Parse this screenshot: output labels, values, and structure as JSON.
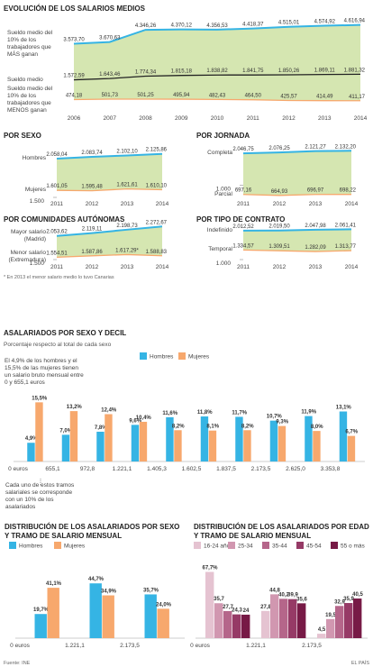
{
  "chart_data": [
    {
      "type": "line",
      "title": "EVOLUCIÓN DE LOS SALARIOS MEDIOS",
      "categories": [
        "2006",
        "2007",
        "2008",
        "2009",
        "2010",
        "2011",
        "2012",
        "2013",
        "2014"
      ],
      "ylim": [
        0,
        4800
      ],
      "fill": "#d5e6b1",
      "series": [
        {
          "name": "Sueldo medio del 10% de los trabajadores que MÁS ganan",
          "color": "#35b4e4",
          "values": [
            3573.7,
            3670.63,
            4346.26,
            4370.12,
            4356.53,
            4418.37,
            4515.01,
            4574.92,
            4616.94
          ],
          "value_labels": [
            "3.573,70",
            "3.670,63",
            "4.346,26",
            "4.370,12",
            "4.356,53",
            "4.418,37",
            "4.515,01",
            "4.574,92",
            "4.616,94"
          ]
        },
        {
          "name": "Sueldo medio",
          "color": "#222222",
          "values": [
            1572.59,
            1643.46,
            1774.34,
            1815.18,
            1838.82,
            1841.75,
            1850.26,
            1869.11,
            1881.32
          ],
          "value_labels": [
            "1.572,59",
            "1.643,46",
            "1.774,34",
            "1.815,18",
            "1.838,82",
            "1.841,75",
            "1.850,26",
            "1.869,11",
            "1.881,32"
          ]
        },
        {
          "name": "Sueldo medio del 10% de los trabajadores que MENOS ganan",
          "color": "#f7a86d",
          "values": [
            474.18,
            501.73,
            501.25,
            495.94,
            482.43,
            464.5,
            425.57,
            414.49,
            411.17
          ],
          "value_labels": [
            "474,18",
            "501,73",
            "501,25",
            "495,94",
            "482,43",
            "464,50",
            "425,57",
            "414,49",
            "411,17"
          ]
        }
      ]
    },
    {
      "type": "line",
      "title": "POR SEXO",
      "categories": [
        "2011",
        "2012",
        "2013",
        "2014"
      ],
      "ylim": [
        1500,
        2200
      ],
      "yticks": [
        {
          "value": 1500,
          "label": "1.500"
        }
      ],
      "fill": "#d5e6b1",
      "series": [
        {
          "name": "Hombres",
          "color": "#35b4e4",
          "values": [
            2058.04,
            2083.74,
            2102.1,
            2125.86
          ],
          "value_labels": [
            "2.058,04",
            "2.083,74",
            "2.102,10",
            "2.125,86"
          ]
        },
        {
          "name": "Mujeres",
          "color": "#f7a86d",
          "values": [
            1601.05,
            1595.48,
            1621.61,
            1610.1
          ],
          "value_labels": [
            "1.601,05",
            "1.595,48",
            "1.621,61",
            "1.610,10"
          ]
        }
      ]
    },
    {
      "type": "line",
      "title": "POR JORNADA",
      "categories": [
        "2011",
        "2012",
        "2013",
        "2014"
      ],
      "ylim": [
        600,
        2200
      ],
      "yticks": [
        {
          "value": 1000,
          "label": "1.000"
        }
      ],
      "fill": "#d5e6b1",
      "series": [
        {
          "name": "Completa",
          "color": "#35b4e4",
          "values": [
            2046.75,
            2076.25,
            2121.27,
            2132.2
          ],
          "value_labels": [
            "2.046,75",
            "2.076,25",
            "2.121,27",
            "2.132,20"
          ]
        },
        {
          "name": "Parcial",
          "color": "#f7a86d",
          "values": [
            697.16,
            664.93,
            696.97,
            698.22
          ],
          "value_labels": [
            "697,16",
            "664,93",
            "696,97",
            "698,22"
          ]
        }
      ]
    },
    {
      "type": "line",
      "title": "POR COMUNIDADES AUTÓNOMAS",
      "categories": [
        "2011",
        "2012",
        "2013",
        "2014"
      ],
      "ylim": [
        1500,
        2300
      ],
      "yticks": [
        {
          "value": 1500,
          "label": "1.500"
        }
      ],
      "fill": "#d5e6b1",
      "note": "* En 2013 el menor salario medio lo tuvo Canarias",
      "series": [
        {
          "name": "Mayor salario (Madrid)",
          "color": "#35b4e4",
          "values": [
            2053.62,
            2119.11,
            2198.73,
            2272.67
          ],
          "value_labels": [
            "2.053,62",
            "2.119,11",
            "2.198,73",
            "2.272,67"
          ]
        },
        {
          "name": "Menor salario (Extremadura)",
          "color": "#f7a86d",
          "values": [
            1554.51,
            1587.86,
            1617.29,
            1588.83
          ],
          "value_labels": [
            "1.554,51",
            "1.587,86",
            "1.617,29*",
            "1.588,83"
          ]
        }
      ]
    },
    {
      "type": "line",
      "title": "POR TIPO DE CONTRATO",
      "categories": [
        "2011",
        "2012",
        "2013",
        "2014"
      ],
      "ylim": [
        1000,
        2200
      ],
      "yticks": [
        {
          "value": 1000,
          "label": "1.000"
        }
      ],
      "fill": "#d5e6b1",
      "series": [
        {
          "name": "Indefinido",
          "color": "#35b4e4",
          "values": [
            2012.52,
            2019.5,
            2047.98,
            2061.41
          ],
          "value_labels": [
            "2.012,52",
            "2.019,50",
            "2.047,98",
            "2.061,41"
          ]
        },
        {
          "name": "Temporal",
          "color": "#f7a86d",
          "values": [
            1334.57,
            1309.51,
            1282.09,
            1313.77
          ],
          "value_labels": [
            "1.334,57",
            "1.309,51",
            "1.282,09",
            "1.313,77"
          ]
        }
      ]
    },
    {
      "type": "bar",
      "title": "ASALARIADOS POR SEXO Y DECIL",
      "subtitle": "Porcentaje respecto al total de cada sexo",
      "annotations": [
        "El 4,9% de los hombres y el 15,5% de las mujeres tienen un salario bruto mensual entre 0 y 655,1 euros",
        "Cada uno de estos tramos salariales se corresponde con un 10% de los asalariados"
      ],
      "categories": [
        "0 euros",
        "655,1",
        "972,8",
        "1.221,1",
        "1.405,3",
        "1.602,5",
        "1.837,5",
        "2.173,5",
        "2.625,0",
        "3.353,8"
      ],
      "ylim": [
        0,
        17
      ],
      "series": [
        {
          "name": "Hombres",
          "color": "#35b4e4",
          "values": [
            4.9,
            7.0,
            7.8,
            9.6,
            11.6,
            11.8,
            11.7,
            10.7,
            11.9,
            13.1
          ],
          "value_labels": [
            "4,9%",
            "7,0%",
            "7,8%",
            "9,6%",
            "11,6%",
            "11,8%",
            "11,7%",
            "10,7%",
            "11,9%",
            "13,1%"
          ]
        },
        {
          "name": "Mujeres",
          "color": "#f7a86d",
          "values": [
            15.5,
            13.2,
            12.4,
            10.4,
            8.2,
            8.1,
            8.2,
            9.3,
            8.0,
            6.7
          ],
          "value_labels": [
            "15,5%",
            "13,2%",
            "12,4%",
            "10,4%",
            "8,2%",
            "8,1%",
            "8,2%",
            "9,3%",
            "8,0%",
            "6,7%"
          ]
        }
      ]
    },
    {
      "type": "bar",
      "title": "DISTRIBUCIÓN DE LOS ASALARIADOS POR SEXO Y TRAMO DE SALARIO MENSUAL",
      "categories": [
        "0 euros",
        "1.221,1",
        "2.173,5"
      ],
      "ylim": [
        0,
        50
      ],
      "series": [
        {
          "name": "Hombres",
          "color": "#35b4e4",
          "values": [
            19.7,
            44.7,
            35.7
          ],
          "value_labels": [
            "19,7%",
            "44,7%",
            "35,7%"
          ]
        },
        {
          "name": "Mujeres",
          "color": "#f7a86d",
          "values": [
            41.1,
            34.9,
            24.0
          ],
          "value_labels": [
            "41,1%",
            "34,9%",
            "24,0%"
          ]
        }
      ]
    },
    {
      "type": "bar",
      "title": "DISTRIBUCIÓN DE LOS ASALARIADOS POR EDAD Y TRAMO DE SALARIO MENSUAL",
      "categories": [
        "0 euros",
        "1.221,1",
        "2.173,5"
      ],
      "ylim": [
        0,
        70
      ],
      "series": [
        {
          "name": "16-24 años",
          "color": "#e5c3d1",
          "values": [
            67.7,
            27.8,
            4.5
          ],
          "value_labels": [
            "67,7%",
            "27,8",
            "4,5"
          ]
        },
        {
          "name": "25-34",
          "color": "#d197b0",
          "values": [
            35.7,
            44.8,
            19.5
          ],
          "value_labels": [
            "35,7",
            "44,8",
            "19,5"
          ]
        },
        {
          "name": "35-44",
          "color": "#b5668a",
          "values": [
            27.7,
            40.2,
            32.9
          ],
          "value_labels": [
            "27,7",
            "40,2",
            "32,9"
          ]
        },
        {
          "name": "45-54",
          "color": "#963a66",
          "values": [
            24.3,
            39.9,
            35.9
          ],
          "value_labels": [
            "24,3",
            "39,9",
            "35,9"
          ]
        },
        {
          "name": "55 o más",
          "color": "#771a46",
          "values": [
            24,
            35.6,
            40.5
          ],
          "value_labels": [
            "24",
            "35,6",
            "40,5"
          ]
        }
      ]
    }
  ],
  "footer": {
    "source": "Fuente: INE",
    "brand": "EL PAÍS"
  }
}
